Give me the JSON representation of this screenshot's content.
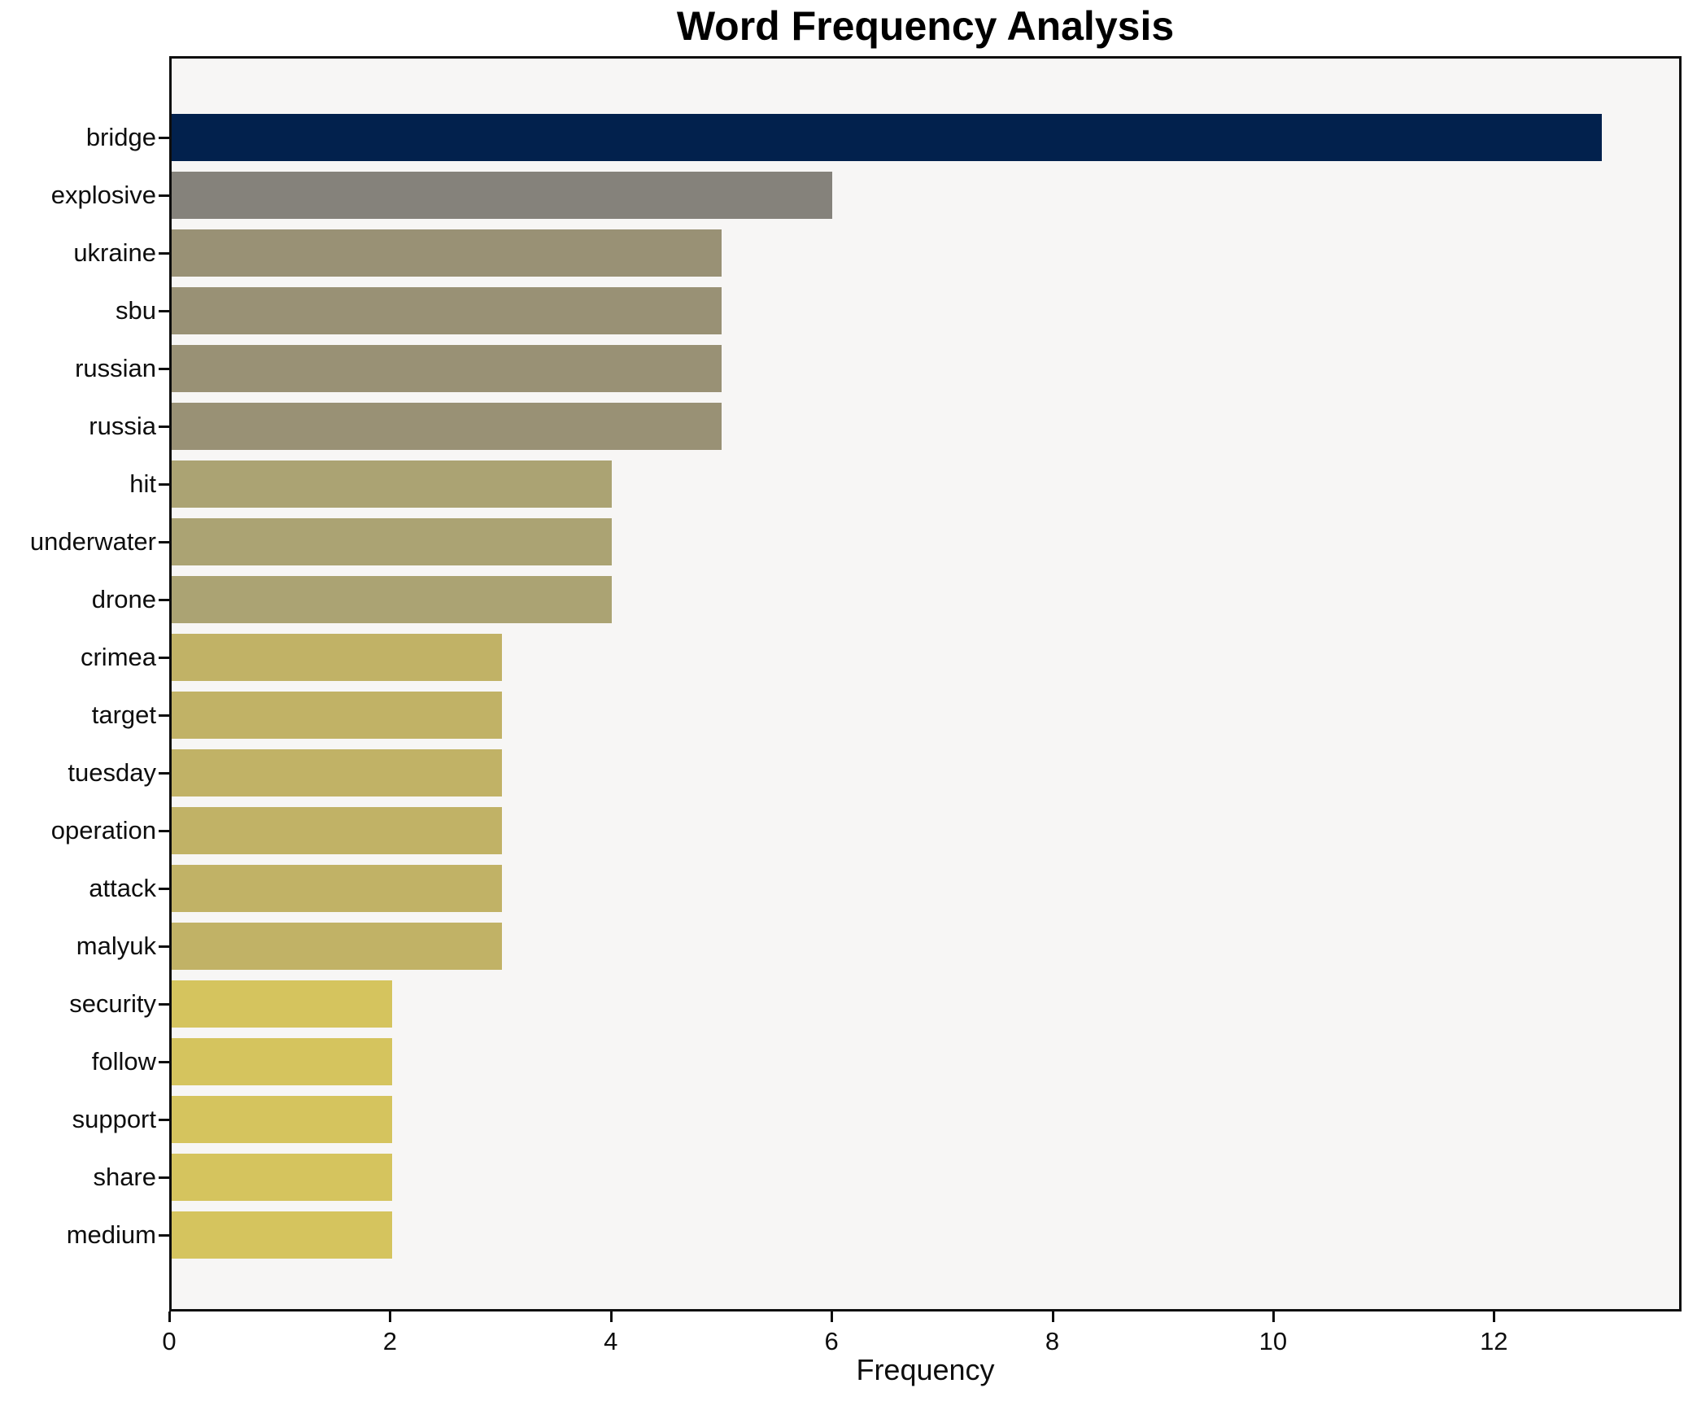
{
  "title": "Word Frequency Analysis",
  "chart_data": {
    "type": "bar",
    "orientation": "horizontal",
    "title": "Word Frequency Analysis",
    "xlabel": "Frequency",
    "ylabel": "",
    "categories": [
      "bridge",
      "explosive",
      "ukraine",
      "sbu",
      "russian",
      "russia",
      "hit",
      "underwater",
      "drone",
      "crimea",
      "target",
      "tuesday",
      "operation",
      "attack",
      "malyuk",
      "security",
      "follow",
      "support",
      "share",
      "medium"
    ],
    "values": [
      13,
      6,
      5,
      5,
      5,
      5,
      4,
      4,
      4,
      3,
      3,
      3,
      3,
      3,
      3,
      2,
      2,
      2,
      2,
      2
    ],
    "xticks": [
      0,
      2,
      4,
      6,
      8,
      10,
      12
    ],
    "xlim": [
      0,
      13.7
    ],
    "grid": false,
    "legend": null,
    "colors_by_value": {
      "13": "#02214d",
      "6": "#85827b",
      "5": "#999175",
      "4": "#aba373",
      "3": "#c1b266",
      "2": "#d5c45e"
    },
    "plot_background": "#f7f6f5",
    "figure_background": "#ffffff",
    "axis_color": "#0e0e0e"
  }
}
